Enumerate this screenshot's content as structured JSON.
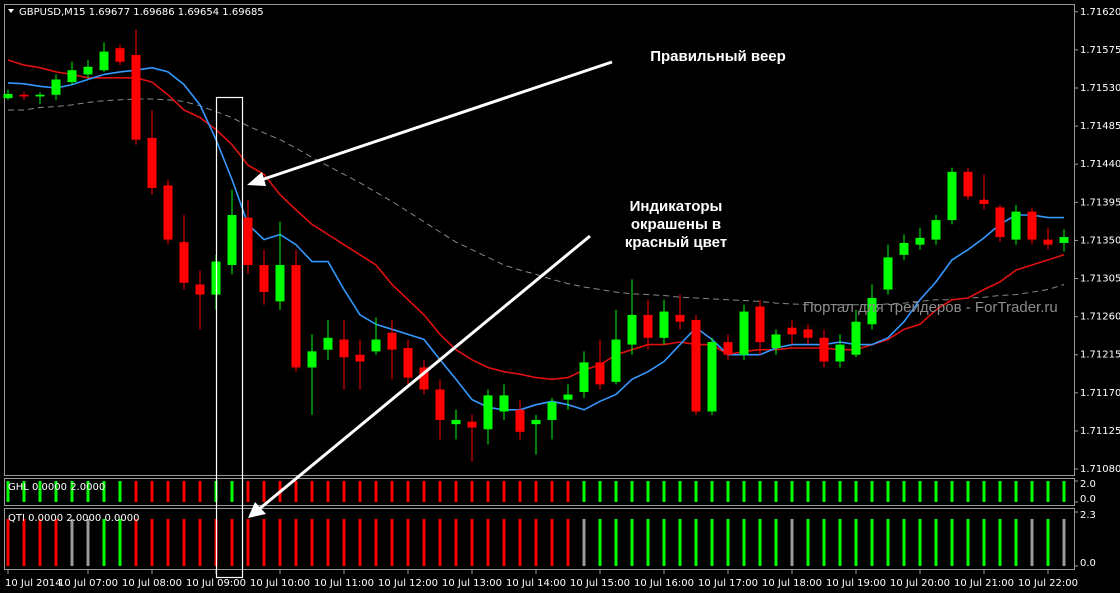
{
  "chart_data": [
    {
      "type": "candlestick",
      "title": "GBPUSD,M15  1.69677 1.69686 1.69654 1.69685",
      "categories": [
        "10 Jul 2014",
        null,
        null,
        null,
        null,
        "10 Jul 07:00",
        null,
        null,
        null,
        "10 Jul 08:00",
        null,
        null,
        null,
        "10 Jul 09:00",
        null,
        null,
        null,
        "10 Jul 10:00",
        null,
        null,
        null,
        "10 Jul 11:00",
        null,
        null,
        null,
        "10 Jul 12:00",
        null,
        null,
        null,
        "10 Jul 13:00",
        null,
        null,
        null,
        "10 Jul 14:00",
        null,
        null,
        null,
        "10 Jul 15:00",
        null,
        null,
        null,
        "10 Jul 16:00",
        null,
        null,
        null,
        "10 Jul 17:00",
        null,
        null,
        null,
        "10 Jul 18:00",
        null,
        null,
        null,
        "10 Jul 19:00",
        null,
        null,
        null,
        "10 Jul 20:00",
        null,
        null,
        null,
        "10 Jul 21:00",
        null,
        null,
        null,
        "10 Jul 22:00",
        null
      ],
      "open": [
        1.71518,
        1.71522,
        1.7152,
        1.71522,
        1.71537,
        1.71546,
        1.71551,
        1.71577,
        1.71569,
        1.71471,
        1.71415,
        1.71348,
        1.71298,
        1.71286,
        1.71321,
        1.71377,
        1.71321,
        1.71278,
        1.71321,
        1.712,
        1.71221,
        1.71233,
        1.71215,
        1.71219,
        1.71241,
        1.71223,
        1.712,
        1.71174,
        1.71133,
        1.71136,
        1.71127,
        1.71148,
        1.7115,
        1.71133,
        1.71138,
        1.71162,
        1.71171,
        1.71206,
        1.71183,
        1.71227,
        1.71262,
        1.71235,
        1.71262,
        1.71256,
        1.71148,
        1.7123,
        1.71215,
        1.71272,
        1.71223,
        1.71247,
        1.71245,
        1.71235,
        1.71207,
        1.71215,
        1.71251,
        1.71292,
        1.71333,
        1.71345,
        1.71351,
        1.71374,
        1.71431,
        1.71398,
        1.71389,
        1.71351,
        1.71384,
        1.71351,
        1.71347
      ],
      "high": [
        1.71528,
        1.71525,
        1.71525,
        1.71546,
        1.71561,
        1.71563,
        1.71584,
        1.71581,
        1.71599,
        1.71504,
        1.71422,
        1.7138,
        1.71315,
        1.71333,
        1.7141,
        1.71398,
        1.71339,
        1.71372,
        1.71339,
        1.71239,
        1.71256,
        1.71256,
        1.71233,
        1.71259,
        1.71256,
        1.71233,
        1.71209,
        1.71186,
        1.7115,
        1.71144,
        1.71174,
        1.7118,
        1.71162,
        1.71144,
        1.71164,
        1.7118,
        1.71219,
        1.71233,
        1.71268,
        1.71304,
        1.7128,
        1.7128,
        1.71286,
        1.71262,
        1.71235,
        1.71239,
        1.71274,
        1.7128,
        1.71245,
        1.71256,
        1.71251,
        1.71245,
        1.71239,
        1.71268,
        1.71298,
        1.71345,
        1.71357,
        1.71365,
        1.7138,
        1.71436,
        1.71436,
        1.71428,
        1.71392,
        1.71392,
        1.71389,
        1.71365,
        1.71363
      ],
      "low": [
        1.71516,
        1.71516,
        1.71511,
        1.71516,
        1.71534,
        1.71542,
        1.71549,
        1.71557,
        1.71463,
        1.71404,
        1.71345,
        1.71292,
        1.71245,
        1.71268,
        1.7131,
        1.7131,
        1.71274,
        1.71268,
        1.71195,
        1.71144,
        1.71209,
        1.71174,
        1.71174,
        1.71215,
        1.71186,
        1.7118,
        1.71168,
        1.71115,
        1.71115,
        1.71089,
        1.71109,
        1.71138,
        1.71115,
        1.71097,
        1.71115,
        1.7115,
        1.71164,
        1.71174,
        1.7118,
        1.71215,
        1.71221,
        1.71227,
        1.71245,
        1.71144,
        1.71144,
        1.71209,
        1.71209,
        1.71215,
        1.71215,
        1.71227,
        1.71227,
        1.712,
        1.712,
        1.71212,
        1.71245,
        1.71286,
        1.71327,
        1.71339,
        1.71345,
        1.71369,
        1.71398,
        1.71386,
        1.71348,
        1.71345,
        1.71345,
        1.71339,
        1.71337
      ],
      "close": [
        1.71523,
        1.7152,
        1.71522,
        1.7154,
        1.71551,
        1.71555,
        1.71573,
        1.71561,
        1.71469,
        1.71412,
        1.71351,
        1.713,
        1.71286,
        1.71325,
        1.7138,
        1.71321,
        1.71289,
        1.71321,
        1.712,
        1.71219,
        1.71235,
        1.71212,
        1.71207,
        1.71233,
        1.71221,
        1.71188,
        1.71174,
        1.71138,
        1.71138,
        1.71129,
        1.71167,
        1.71167,
        1.71124,
        1.71138,
        1.71159,
        1.71168,
        1.71206,
        1.7118,
        1.71233,
        1.71262,
        1.71235,
        1.71266,
        1.71254,
        1.71148,
        1.7123,
        1.71215,
        1.71266,
        1.7123,
        1.71239,
        1.71239,
        1.71235,
        1.71207,
        1.71227,
        1.71254,
        1.71282,
        1.7133,
        1.71347,
        1.71353,
        1.71374,
        1.71431,
        1.71402,
        1.71393,
        1.71354,
        1.71384,
        1.71351,
        1.71345,
        1.71354
      ],
      "up_color": "#00ff00",
      "down_color": "#ff0000",
      "lines": [
        {
          "color": "#888888",
          "style": "dashed",
          "values": [
            1.71504,
            1.71504,
            1.71507,
            1.71508,
            1.7151,
            1.71513,
            1.71515,
            1.71516,
            1.71517,
            1.71517,
            1.71516,
            1.71514,
            1.71509,
            1.71502,
            1.71495,
            1.71485,
            1.71477,
            1.71469,
            1.71459,
            1.71448,
            1.71438,
            1.71428,
            1.71418,
            1.71407,
            1.71396,
            1.71384,
            1.71372,
            1.7136,
            1.71348,
            1.71339,
            1.7133,
            1.71321,
            1.71315,
            1.7131,
            1.71304,
            1.71299,
            1.71295,
            1.71292,
            1.71289,
            1.71287,
            1.71286,
            1.71285,
            1.71283,
            1.71282,
            1.71281,
            1.7128,
            1.71279,
            1.71278,
            1.71276,
            1.71275,
            1.71274,
            1.71274,
            1.71274,
            1.71274,
            1.71274,
            1.71275,
            1.71276,
            1.71278,
            1.7128,
            1.7128,
            1.71282,
            1.71283,
            1.71285,
            1.71286,
            1.71289,
            1.71292,
            1.71298
          ]
        },
        {
          "color": "#e01010",
          "style": "solid",
          "values": [
            1.71563,
            1.71557,
            1.71554,
            1.71549,
            1.71546,
            1.71542,
            1.71542,
            1.71542,
            1.71542,
            1.71537,
            1.71522,
            1.71504,
            1.71495,
            1.71481,
            1.71463,
            1.71439,
            1.71428,
            1.71404,
            1.71386,
            1.71369,
            1.71357,
            1.71345,
            1.71333,
            1.71321,
            1.71298,
            1.7128,
            1.71262,
            1.71239,
            1.71221,
            1.71209,
            1.712,
            1.71195,
            1.71192,
            1.71188,
            1.71186,
            1.71188,
            1.71197,
            1.71203,
            1.71215,
            1.71221,
            1.71227,
            1.71227,
            1.7123,
            1.71227,
            1.71227,
            1.71215,
            1.71219,
            1.71221,
            1.71221,
            1.71223,
            1.71223,
            1.71223,
            1.71221,
            1.71221,
            1.71227,
            1.71233,
            1.71245,
            1.71251,
            1.71268,
            1.7128,
            1.71282,
            1.71292,
            1.71301,
            1.71315,
            1.71321,
            1.71327,
            1.71333
          ]
        },
        {
          "color": "#3399ff",
          "style": "solid",
          "values": [
            1.71536,
            1.71535,
            1.71532,
            1.7153,
            1.71534,
            1.7154,
            1.71546,
            1.71549,
            1.71551,
            1.71554,
            1.71549,
            1.71534,
            1.7151,
            1.71469,
            1.71422,
            1.71369,
            1.71351,
            1.71357,
            1.71345,
            1.71325,
            1.71325,
            1.71292,
            1.71262,
            1.71251,
            1.71245,
            1.71239,
            1.71233,
            1.71209,
            1.71186,
            1.71162,
            1.71153,
            1.7115,
            1.7115,
            1.71156,
            1.7116,
            1.71156,
            1.7115,
            1.7116,
            1.71168,
            1.71186,
            1.71195,
            1.71207,
            1.71227,
            1.71247,
            1.71233,
            1.71215,
            1.71215,
            1.71215,
            1.71223,
            1.71227,
            1.71227,
            1.71227,
            1.7123,
            1.71227,
            1.71227,
            1.71235,
            1.71254,
            1.7128,
            1.71301,
            1.71327,
            1.71339,
            1.71353,
            1.71369,
            1.7138,
            1.7138,
            1.71377,
            1.71377
          ]
        }
      ],
      "ylim": [
        1.71073,
        1.71628
      ],
      "yticks": [
        {
          "value": 1.7162,
          "label": "1.71620"
        },
        {
          "value": 1.71575,
          "label": "1.71575"
        },
        {
          "value": 1.7153,
          "label": "1.71530"
        },
        {
          "value": 1.71485,
          "label": "1.71485"
        },
        {
          "value": 1.7144,
          "label": "1.71440"
        },
        {
          "value": 1.71395,
          "label": "1.71395"
        },
        {
          "value": 1.7135,
          "label": "1.71350"
        },
        {
          "value": 1.71305,
          "label": "1.71305"
        },
        {
          "value": 1.7126,
          "label": "1.71260"
        },
        {
          "value": 1.71215,
          "label": "1.71215"
        },
        {
          "value": 1.7117,
          "label": "1.71170"
        },
        {
          "value": 1.71125,
          "label": "1.71125"
        },
        {
          "value": 1.7108,
          "label": "1.71080"
        }
      ],
      "annotations": {
        "fan": "Правильный веер",
        "indicators": [
          "Индикаторы",
          "окрашены в",
          "красный цвет"
        ]
      },
      "watermark": "Портал для трейдеров - ForTrader.ru"
    },
    {
      "type": "bar",
      "title": "GHL 0.0000 2.0000",
      "values": [
        2,
        2,
        2,
        2,
        2,
        2,
        2,
        2,
        2,
        2,
        2,
        2,
        2,
        2,
        2,
        2,
        2,
        2,
        2,
        2,
        2,
        2,
        2,
        2,
        2,
        2,
        2,
        2,
        2,
        2,
        2,
        2,
        2,
        2,
        2,
        2,
        2,
        2,
        2,
        2,
        2,
        2,
        2,
        2,
        2,
        2,
        2,
        2,
        2,
        2,
        2,
        2,
        2,
        2,
        2,
        2,
        2,
        2,
        2,
        2,
        2,
        2,
        2,
        2,
        2,
        2,
        2
      ],
      "colors": [
        "#0f0",
        "#0f0",
        "#0f0",
        "#0f0",
        "#0f0",
        "#0f0",
        "#0f0",
        "#0f0",
        "#f00",
        "#f00",
        "#f00",
        "#f00",
        "#f00",
        "#0f0",
        "#0f0",
        "#f00",
        "#f00",
        "#f00",
        "#f00",
        "#f00",
        "#f00",
        "#f00",
        "#f00",
        "#f00",
        "#f00",
        "#f00",
        "#f00",
        "#f00",
        "#f00",
        "#f00",
        "#f00",
        "#f00",
        "#f00",
        "#f00",
        "#f00",
        "#f00",
        "#0f0",
        "#0f0",
        "#0f0",
        "#0f0",
        "#0f0",
        "#0f0",
        "#0f0",
        "#0f0",
        "#0f0",
        "#0f0",
        "#0f0",
        "#0f0",
        "#0f0",
        "#0f0",
        "#0f0",
        "#0f0",
        "#0f0",
        "#0f0",
        "#0f0",
        "#0f0",
        "#0f0",
        "#0f0",
        "#0f0",
        "#0f0",
        "#0f0",
        "#0f0",
        "#0f0",
        "#0f0",
        "#0f0",
        "#0f0",
        "#0f0"
      ],
      "ylim": [
        0,
        2
      ],
      "yticks": [
        {
          "value": 2,
          "label": "2.0"
        },
        {
          "value": 0,
          "label": "0.0"
        }
      ]
    },
    {
      "type": "bar",
      "title": "QTI 0.0000 2.0000 0.0000",
      "values": [
        2,
        2,
        2,
        2,
        2,
        2,
        2,
        2,
        2,
        2,
        2,
        2,
        2,
        2,
        2,
        2,
        2,
        2,
        2,
        2,
        2,
        2,
        2,
        2,
        2,
        2,
        2,
        2,
        2,
        2,
        2,
        2,
        2,
        2,
        2,
        2,
        2,
        2,
        2,
        2,
        2,
        2,
        2,
        2,
        2,
        2,
        2,
        2,
        2,
        2,
        2,
        2,
        2,
        2,
        2,
        2,
        2,
        2,
        2,
        2,
        2,
        2,
        2,
        2,
        2,
        2,
        2
      ],
      "colors": [
        "#f00",
        "#f00",
        "#f00",
        "#f00",
        "#999",
        "#999",
        "#0f0",
        "#0f0",
        "#f00",
        "#f00",
        "#f00",
        "#f00",
        "#f00",
        "#f00",
        "#f00",
        "#f00",
        "#f00",
        "#f00",
        "#f00",
        "#f00",
        "#f00",
        "#f00",
        "#f00",
        "#f00",
        "#f00",
        "#f00",
        "#f00",
        "#f00",
        "#f00",
        "#f00",
        "#f00",
        "#f00",
        "#f00",
        "#f00",
        "#f00",
        "#f00",
        "#999",
        "#0f0",
        "#0f0",
        "#0f0",
        "#0f0",
        "#0f0",
        "#0f0",
        "#0f0",
        "#0f0",
        "#0f0",
        "#0f0",
        "#0f0",
        "#0f0",
        "#999",
        "#0f0",
        "#0f0",
        "#0f0",
        "#0f0",
        "#0f0",
        "#0f0",
        "#0f0",
        "#0f0",
        "#0f0",
        "#0f0",
        "#0f0",
        "#0f0",
        "#0f0",
        "#0f0",
        "#999",
        "#0f0",
        "#999"
      ],
      "ylim": [
        0,
        2.3
      ],
      "yticks": [
        2.3,
        {
          "value": 0,
          "label": "0.0"
        }
      ]
    }
  ]
}
